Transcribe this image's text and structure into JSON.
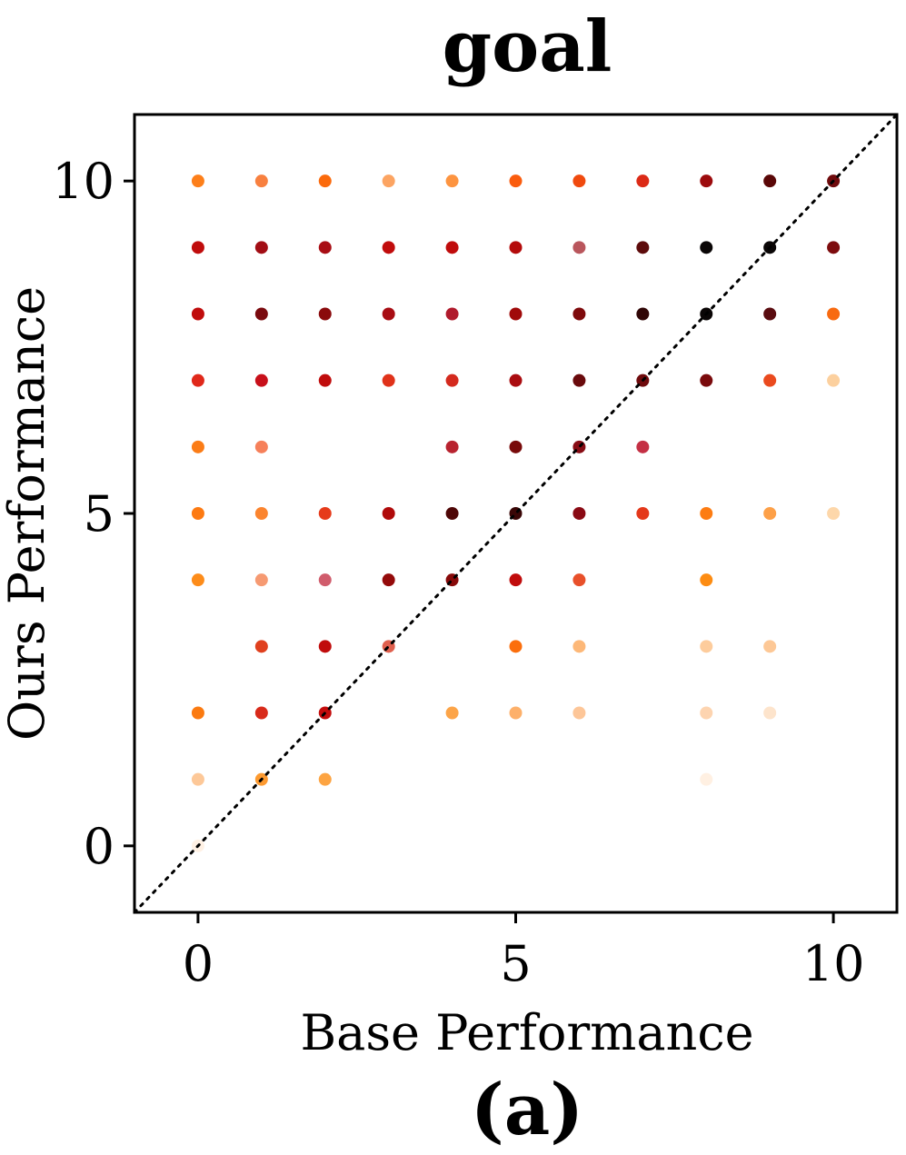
{
  "chart_data": {
    "type": "scatter",
    "title": "goal",
    "xlabel": "Base Performance",
    "ylabel": "Ours Performance",
    "caption": "(a)",
    "xlim": [
      -1,
      11
    ],
    "ylim": [
      -1,
      11
    ],
    "xticks": [
      0,
      5,
      10
    ],
    "yticks": [
      0,
      5,
      10
    ],
    "grid": false,
    "reference_line": "diagonal y = x, dotted black",
    "colormap": [
      "#fff1e4",
      "#fdd0a2",
      "#fdae6b",
      "#fd8d3c",
      "#f16913",
      "#d94801",
      "#a63603",
      "#7f0000",
      "#000000"
    ],
    "points": [
      {
        "x": 0,
        "y": 10,
        "c": "#fd7f1a"
      },
      {
        "x": 1,
        "y": 10,
        "c": "#f8803f"
      },
      {
        "x": 2,
        "y": 10,
        "c": "#fb6a0c"
      },
      {
        "x": 3,
        "y": 10,
        "c": "#fca462"
      },
      {
        "x": 4,
        "y": 10,
        "c": "#fd9440"
      },
      {
        "x": 5,
        "y": 10,
        "c": "#fa5c0e"
      },
      {
        "x": 6,
        "y": 10,
        "c": "#f04a0e"
      },
      {
        "x": 7,
        "y": 10,
        "c": "#dc2a16"
      },
      {
        "x": 8,
        "y": 10,
        "c": "#9c0b0d"
      },
      {
        "x": 9,
        "y": 10,
        "c": "#5a0707"
      },
      {
        "x": 10,
        "y": 10,
        "c": "#6f0a0c"
      },
      {
        "x": 0,
        "y": 9,
        "c": "#c00c0c"
      },
      {
        "x": 1,
        "y": 9,
        "c": "#a20d14"
      },
      {
        "x": 2,
        "y": 9,
        "c": "#a80d14"
      },
      {
        "x": 3,
        "y": 9,
        "c": "#c10c0c"
      },
      {
        "x": 4,
        "y": 9,
        "c": "#c00c0c"
      },
      {
        "x": 5,
        "y": 9,
        "c": "#b40b0b"
      },
      {
        "x": 6,
        "y": 9,
        "c": "#b9565c"
      },
      {
        "x": 7,
        "y": 9,
        "c": "#5d0b0b"
      },
      {
        "x": 8,
        "y": 9,
        "c": "#0a0606"
      },
      {
        "x": 9,
        "y": 9,
        "c": "#0a0606"
      },
      {
        "x": 10,
        "y": 9,
        "c": "#7d0c0e"
      },
      {
        "x": 0,
        "y": 8,
        "c": "#c00c0c"
      },
      {
        "x": 1,
        "y": 8,
        "c": "#7a0a0e"
      },
      {
        "x": 2,
        "y": 8,
        "c": "#8a0a0c"
      },
      {
        "x": 3,
        "y": 8,
        "c": "#a80d14"
      },
      {
        "x": 4,
        "y": 8,
        "c": "#b01a2c"
      },
      {
        "x": 5,
        "y": 8,
        "c": "#a00a0a"
      },
      {
        "x": 6,
        "y": 8,
        "c": "#7e0a0c"
      },
      {
        "x": 7,
        "y": 8,
        "c": "#300606"
      },
      {
        "x": 8,
        "y": 8,
        "c": "#0a0606"
      },
      {
        "x": 9,
        "y": 8,
        "c": "#5a0c10"
      },
      {
        "x": 10,
        "y": 8,
        "c": "#f86a10"
      },
      {
        "x": 0,
        "y": 7,
        "c": "#e0281a"
      },
      {
        "x": 1,
        "y": 7,
        "c": "#c8101a"
      },
      {
        "x": 2,
        "y": 7,
        "c": "#c00c0c"
      },
      {
        "x": 3,
        "y": 7,
        "c": "#e0321a"
      },
      {
        "x": 4,
        "y": 7,
        "c": "#d42a1e"
      },
      {
        "x": 5,
        "y": 7,
        "c": "#aa0c10"
      },
      {
        "x": 6,
        "y": 7,
        "c": "#6a0a0c"
      },
      {
        "x": 7,
        "y": 7,
        "c": "#6f0a0c"
      },
      {
        "x": 8,
        "y": 7,
        "c": "#7a0a0c"
      },
      {
        "x": 9,
        "y": 7,
        "c": "#ea4a1e"
      },
      {
        "x": 10,
        "y": 7,
        "c": "#fcd09e"
      },
      {
        "x": 0,
        "y": 6,
        "c": "#fb7c16"
      },
      {
        "x": 1,
        "y": 6,
        "c": "#f6805a"
      },
      {
        "x": 4,
        "y": 6,
        "c": "#b8232f"
      },
      {
        "x": 5,
        "y": 6,
        "c": "#780a0a"
      },
      {
        "x": 6,
        "y": 6,
        "c": "#880c14"
      },
      {
        "x": 7,
        "y": 6,
        "c": "#c43044"
      },
      {
        "x": 0,
        "y": 5,
        "c": "#fd7a12"
      },
      {
        "x": 1,
        "y": 5,
        "c": "#fb842e"
      },
      {
        "x": 2,
        "y": 5,
        "c": "#e63a1a"
      },
      {
        "x": 3,
        "y": 5,
        "c": "#b00a0a"
      },
      {
        "x": 4,
        "y": 5,
        "c": "#4e0606"
      },
      {
        "x": 5,
        "y": 5,
        "c": "#3a0606"
      },
      {
        "x": 6,
        "y": 5,
        "c": "#8a0a14"
      },
      {
        "x": 7,
        "y": 5,
        "c": "#e4381a"
      },
      {
        "x": 8,
        "y": 5,
        "c": "#fd7c12"
      },
      {
        "x": 9,
        "y": 5,
        "c": "#fda048"
      },
      {
        "x": 10,
        "y": 5,
        "c": "#fdd7aa"
      },
      {
        "x": 0,
        "y": 4,
        "c": "#fd8c1a"
      },
      {
        "x": 1,
        "y": 4,
        "c": "#f69a72"
      },
      {
        "x": 2,
        "y": 4,
        "c": "#d05c6c"
      },
      {
        "x": 3,
        "y": 4,
        "c": "#940a0a"
      },
      {
        "x": 4,
        "y": 4,
        "c": "#880a0a"
      },
      {
        "x": 5,
        "y": 4,
        "c": "#c00c0c"
      },
      {
        "x": 6,
        "y": 4,
        "c": "#e8502a"
      },
      {
        "x": 8,
        "y": 4,
        "c": "#fd8c12"
      },
      {
        "x": 1,
        "y": 3,
        "c": "#e0401e"
      },
      {
        "x": 2,
        "y": 3,
        "c": "#c00c0c"
      },
      {
        "x": 3,
        "y": 3,
        "c": "#e0604e"
      },
      {
        "x": 5,
        "y": 3,
        "c": "#fb6e0c"
      },
      {
        "x": 6,
        "y": 3,
        "c": "#fdb878"
      },
      {
        "x": 8,
        "y": 3,
        "c": "#fdcc9c"
      },
      {
        "x": 9,
        "y": 3,
        "c": "#fdc896"
      },
      {
        "x": 0,
        "y": 2,
        "c": "#fb7a10"
      },
      {
        "x": 1,
        "y": 2,
        "c": "#d82a1a"
      },
      {
        "x": 2,
        "y": 2,
        "c": "#c40c0c"
      },
      {
        "x": 4,
        "y": 2,
        "c": "#fca448"
      },
      {
        "x": 5,
        "y": 2,
        "c": "#fdb06a"
      },
      {
        "x": 6,
        "y": 2,
        "c": "#fdc698"
      },
      {
        "x": 8,
        "y": 2,
        "c": "#fdd4b0"
      },
      {
        "x": 9,
        "y": 2,
        "c": "#fde4cc"
      },
      {
        "x": 0,
        "y": 1,
        "c": "#fdc898"
      },
      {
        "x": 1,
        "y": 1,
        "c": "#fd9a30"
      },
      {
        "x": 2,
        "y": 1,
        "c": "#fda442"
      },
      {
        "x": 8,
        "y": 1,
        "c": "#fff0e2"
      },
      {
        "x": 0,
        "y": 0,
        "c": "#fff1e4"
      }
    ]
  }
}
